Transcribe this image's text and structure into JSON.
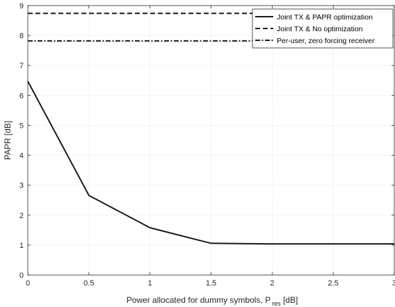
{
  "chart_data": {
    "type": "line",
    "xlabel_main": "Power allocated for dummy symbols, P",
    "xlabel_sub": "res",
    "xlabel_tail": " [dB]",
    "ylabel": "PAPR [dB]",
    "xlim": [
      0,
      3
    ],
    "ylim": [
      0,
      9
    ],
    "x_ticks": [
      0,
      0.5,
      1,
      1.5,
      2,
      2.5,
      3
    ],
    "y_ticks": [
      0,
      1,
      2,
      3,
      4,
      5,
      6,
      7,
      8,
      9
    ],
    "grid": true,
    "legend_position": "top-right",
    "series": [
      {
        "name": "Joint TX & PAPR optimization",
        "style": "solid",
        "x": [
          0,
          0.5,
          1,
          1.5,
          2,
          2.5,
          3
        ],
        "y": [
          6.47,
          2.66,
          1.58,
          1.06,
          1.04,
          1.04,
          1.04
        ]
      },
      {
        "name": "Joint TX & No optimization",
        "style": "dashed",
        "x": [
          0,
          3
        ],
        "y": [
          8.74,
          8.74
        ]
      },
      {
        "name": "Per-user, zero forcing receiver",
        "style": "dashdot",
        "x": [
          0,
          3
        ],
        "y": [
          7.82,
          7.82
        ]
      }
    ],
    "colors": {
      "line": "#1a1a1a",
      "grid": "#d9d9d9",
      "axis": "#262626"
    }
  }
}
